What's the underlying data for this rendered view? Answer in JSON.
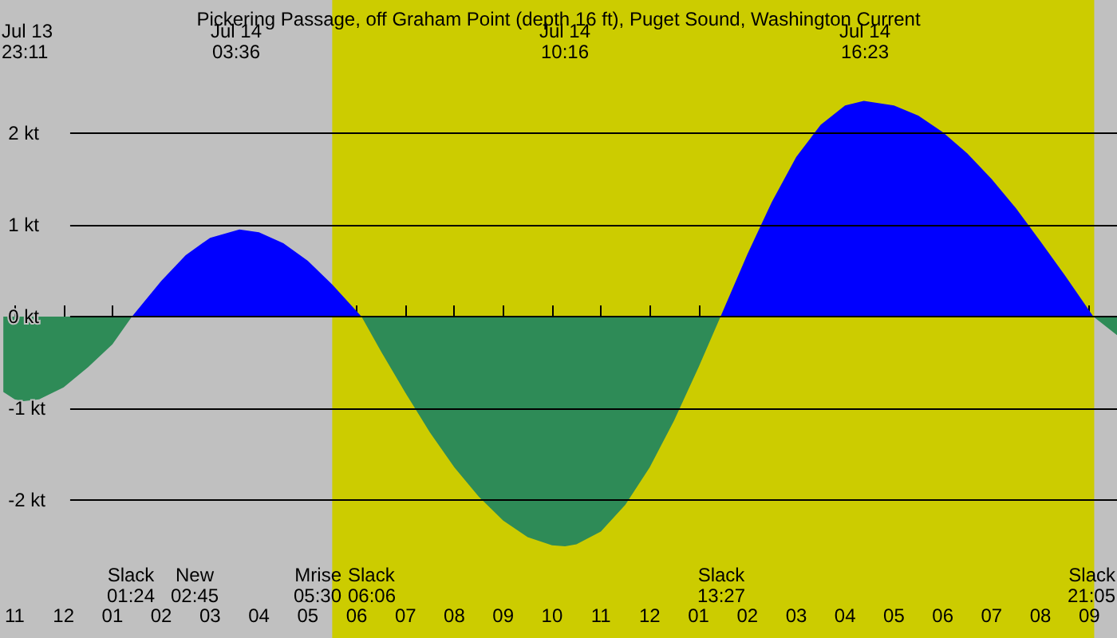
{
  "chart_data": {
    "type": "area",
    "title": "Pickering Passage, off Graham Point (depth 16 ft), Puget Sound, Washington Current",
    "x": [
      "--07-13T22:46",
      "--07-13T23:00",
      "--07-13T23:11",
      "--07-13T23:30",
      "--07-14T00:00",
      "--07-14T00:30",
      "--07-14T01:00",
      "--07-14T01:24",
      "--07-14T02:00",
      "--07-14T02:30",
      "--07-14T03:00",
      "--07-14T03:36",
      "--07-14T04:00",
      "--07-14T04:30",
      "--07-14T05:00",
      "--07-14T05:30",
      "--07-14T06:06",
      "--07-14T06:30",
      "--07-14T07:00",
      "--07-14T07:30",
      "--07-14T08:00",
      "--07-14T08:30",
      "--07-14T09:00",
      "--07-14T09:30",
      "--07-14T10:00",
      "--07-14T10:16",
      "--07-14T10:30",
      "--07-14T11:00",
      "--07-14T11:30",
      "--07-14T12:00",
      "--07-14T12:30",
      "--07-14T13:00",
      "--07-14T13:27",
      "--07-14T14:00",
      "--07-14T14:30",
      "--07-14T15:00",
      "--07-14T15:30",
      "--07-14T16:00",
      "--07-14T16:23",
      "--07-14T17:00",
      "--07-14T17:30",
      "--07-14T18:00",
      "--07-14T18:30",
      "--07-14T19:00",
      "--07-14T19:30",
      "--07-14T20:00",
      "--07-14T20:30",
      "--07-14T21:05",
      "--07-14T21:34"
    ],
    "series": [
      {
        "color": "#2e8b57",
        "values": [
          -0.82,
          -0.9,
          -0.92,
          -0.9,
          -0.77,
          -0.55,
          -0.3,
          0,
          null,
          null,
          null,
          null,
          null,
          null,
          null,
          null,
          0,
          -0.38,
          -0.83,
          -1.26,
          -1.64,
          -1.96,
          -2.22,
          -2.4,
          -2.49,
          -2.5,
          -2.48,
          -2.34,
          -2.05,
          -1.64,
          -1.13,
          -0.55,
          0,
          null,
          null,
          null,
          null,
          null,
          null,
          null,
          null,
          null,
          null,
          null,
          null,
          null,
          null,
          0,
          -0.2
        ]
      },
      {
        "color": "#0000ff",
        "values": [
          null,
          null,
          null,
          null,
          null,
          null,
          null,
          0,
          0.39,
          0.67,
          0.86,
          0.95,
          0.92,
          0.8,
          0.61,
          0.35,
          0,
          null,
          null,
          null,
          null,
          null,
          null,
          null,
          null,
          null,
          null,
          null,
          null,
          null,
          null,
          null,
          0,
          0.68,
          1.25,
          1.74,
          2.09,
          2.3,
          2.35,
          2.3,
          2.19,
          2.01,
          1.78,
          1.5,
          1.18,
          0.82,
          0.45,
          0,
          null
        ]
      }
    ],
    "xlim": [
      "--07-13T22:46",
      "--07-14T21:34"
    ],
    "xticks": [
      {
        "value": "--07-13T23:00",
        "label": "11"
      },
      {
        "value": "--07-14T00:00",
        "label": "12"
      },
      {
        "value": "--07-14T01:00",
        "label": "01"
      },
      {
        "value": "--07-14T02:00",
        "label": "02"
      },
      {
        "value": "--07-14T03:00",
        "label": "03"
      },
      {
        "value": "--07-14T04:00",
        "label": "04"
      },
      {
        "value": "--07-14T05:00",
        "label": "05"
      },
      {
        "value": "--07-14T06:00",
        "label": "06"
      },
      {
        "value": "--07-14T07:00",
        "label": "07"
      },
      {
        "value": "--07-14T08:00",
        "label": "08"
      },
      {
        "value": "--07-14T09:00",
        "label": "09"
      },
      {
        "value": "--07-14T10:00",
        "label": "10"
      },
      {
        "value": "--07-14T11:00",
        "label": "11"
      },
      {
        "value": "--07-14T12:00",
        "label": "12"
      },
      {
        "value": "--07-14T13:00",
        "label": "01"
      },
      {
        "value": "--07-14T14:00",
        "label": "02"
      },
      {
        "value": "--07-14T15:00",
        "label": "03"
      },
      {
        "value": "--07-14T16:00",
        "label": "04"
      },
      {
        "value": "--07-14T17:00",
        "label": "05"
      },
      {
        "value": "--07-14T18:00",
        "label": "06"
      },
      {
        "value": "--07-14T19:00",
        "label": "07"
      },
      {
        "value": "--07-14T20:00",
        "label": "08"
      },
      {
        "value": "--07-14T21:00",
        "label": "09"
      }
    ],
    "ylim": [
      -3.5,
      3.45
    ],
    "yticks": [
      {
        "value": -2,
        "label": "-2 kt"
      },
      {
        "value": -1,
        "label": "-1 kt"
      },
      {
        "value": 0,
        "label": "0 kt"
      },
      {
        "value": 1,
        "label": "1 kt"
      },
      {
        "value": 2,
        "label": "2 kt"
      }
    ],
    "grid": "y",
    "marker": "none",
    "bands": [
      {
        "axis": "x",
        "from": "--07-14T05:30",
        "to": "--07-14T21:06",
        "color": "#cccc00"
      }
    ],
    "annotations": [
      "Jul 13\n23:11",
      "Jul 14\n03:36",
      "Jul 14\n10:16",
      "Jul 14\n16:23",
      "Slack\n01:24",
      "New\n02:45",
      "Mrise\n05:30",
      "Slack\n06:06",
      "Slack\n13:27",
      "Slack\n21:05"
    ]
  }
}
